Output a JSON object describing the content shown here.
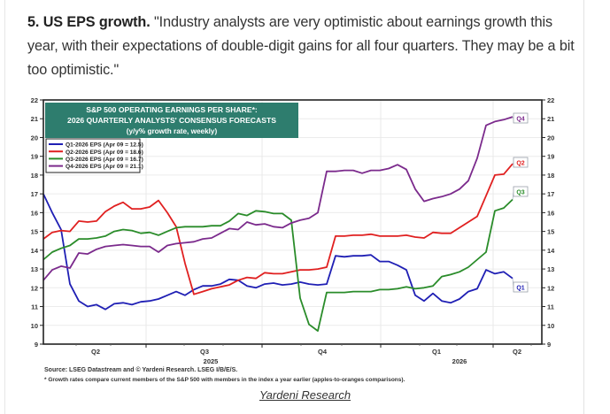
{
  "article": {
    "heading": "5. US EPS growth.",
    "quote": " \"Industry analysts are very optimistic about earnings growth this year, with their expectations of double-digit gains for all four quarters. They may be a bit too optimistic.\""
  },
  "credit_link": "Yardeni Research",
  "chart_data": {
    "type": "line",
    "title_lines": [
      "S&P 500 OPERATING EARNINGS PER SHARE*:",
      "2026 QUARTERLY ANALYSTS' CONSENSUS FORECASTS",
      "(y/y% growth rate, weekly)"
    ],
    "title_bg": "#2e7d6e",
    "ylim": [
      9,
      22
    ],
    "yticks": [
      9,
      10,
      11,
      12,
      13,
      14,
      15,
      16,
      17,
      18,
      19,
      20,
      21,
      22
    ],
    "xlabel": "",
    "ylabel": "",
    "x_start": "2025-04-10",
    "x_frequency": "weekly",
    "x_quarter_labels": [
      "Q2",
      "Q3",
      "Q4",
      "Q1",
      "Q2"
    ],
    "x_year_labels": [
      "2025",
      "2026"
    ],
    "grid": true,
    "legend_position": "top-left",
    "series": [
      {
        "name": "Q1-2026 EPS (Apr 09 = 12.5)",
        "end_tag": "Q1",
        "color": "#1f1fb4",
        "values": [
          17.0,
          16.0,
          15.1,
          12.2,
          11.3,
          11.0,
          11.1,
          10.85,
          11.15,
          11.2,
          11.1,
          11.25,
          11.3,
          11.4,
          11.6,
          11.8,
          11.6,
          11.9,
          12.1,
          12.1,
          12.2,
          12.45,
          12.4,
          12.1,
          12.0,
          12.2,
          12.25,
          12.15,
          12.2,
          12.3,
          12.2,
          12.15,
          12.2,
          13.7,
          13.65,
          13.7,
          13.7,
          13.75,
          13.4,
          13.4,
          13.2,
          12.95,
          11.6,
          11.3,
          11.7,
          11.3,
          11.2,
          11.4,
          11.8,
          11.95,
          12.95,
          12.75,
          12.85,
          12.5
        ]
      },
      {
        "name": "Q2-2026 EPS (Apr 09 = 18.6)",
        "end_tag": "Q2",
        "color": "#e02020",
        "values": [
          14.6,
          14.95,
          15.05,
          15.0,
          15.55,
          15.5,
          15.55,
          16.05,
          16.35,
          16.55,
          16.2,
          16.2,
          16.3,
          16.65,
          16.0,
          15.25,
          13.3,
          11.65,
          11.8,
          11.95,
          12.05,
          12.15,
          12.4,
          12.55,
          12.5,
          12.8,
          12.75,
          12.75,
          12.85,
          12.95,
          12.95,
          13.0,
          13.1,
          14.75,
          14.75,
          14.8,
          14.8,
          14.85,
          14.75,
          14.75,
          14.75,
          14.8,
          14.7,
          14.65,
          14.95,
          14.9,
          14.9,
          15.2,
          15.5,
          15.8,
          16.9,
          18.0,
          18.05,
          18.6
        ]
      },
      {
        "name": "Q3-2026 EPS (Apr 09 = 16.7)",
        "end_tag": "Q3",
        "color": "#2a8c2a",
        "values": [
          13.5,
          13.9,
          14.1,
          14.25,
          14.6,
          14.6,
          14.65,
          14.75,
          15.0,
          15.1,
          15.05,
          14.9,
          14.95,
          14.8,
          15.0,
          15.2,
          15.25,
          15.25,
          15.25,
          15.3,
          15.3,
          15.55,
          15.95,
          15.85,
          16.1,
          16.05,
          15.95,
          15.95,
          15.6,
          11.45,
          10.05,
          9.7,
          11.75,
          11.75,
          11.75,
          11.8,
          11.8,
          11.8,
          11.9,
          11.9,
          11.95,
          12.05,
          11.95,
          12.0,
          12.1,
          12.6,
          12.7,
          12.85,
          13.1,
          13.5,
          13.9,
          16.1,
          16.25,
          16.7
        ]
      },
      {
        "name": "Q4-2026 EPS (Apr 09 = 21.1)",
        "end_tag": "Q4",
        "color": "#7b2a8c",
        "values": [
          12.4,
          12.95,
          13.15,
          13.05,
          13.85,
          13.8,
          14.05,
          14.2,
          14.25,
          14.3,
          14.25,
          14.2,
          14.2,
          13.9,
          14.25,
          14.35,
          14.4,
          14.45,
          14.6,
          14.65,
          14.9,
          15.15,
          15.1,
          15.5,
          15.35,
          15.4,
          15.25,
          15.2,
          15.45,
          15.6,
          15.7,
          16.0,
          18.2,
          18.2,
          18.25,
          18.25,
          18.1,
          18.25,
          18.25,
          18.35,
          18.55,
          18.3,
          17.25,
          16.6,
          16.75,
          16.85,
          17.0,
          17.25,
          17.7,
          18.9,
          20.65,
          20.85,
          20.95,
          21.1
        ]
      }
    ],
    "notes": [
      "Source: LSEG Datastream and © Yardeni Research. LSEG I/B/E/S.",
      "* Growth rates compare current members of the S&P 500 with members in the index a year earlier (apples-to-oranges comparisons)."
    ]
  }
}
